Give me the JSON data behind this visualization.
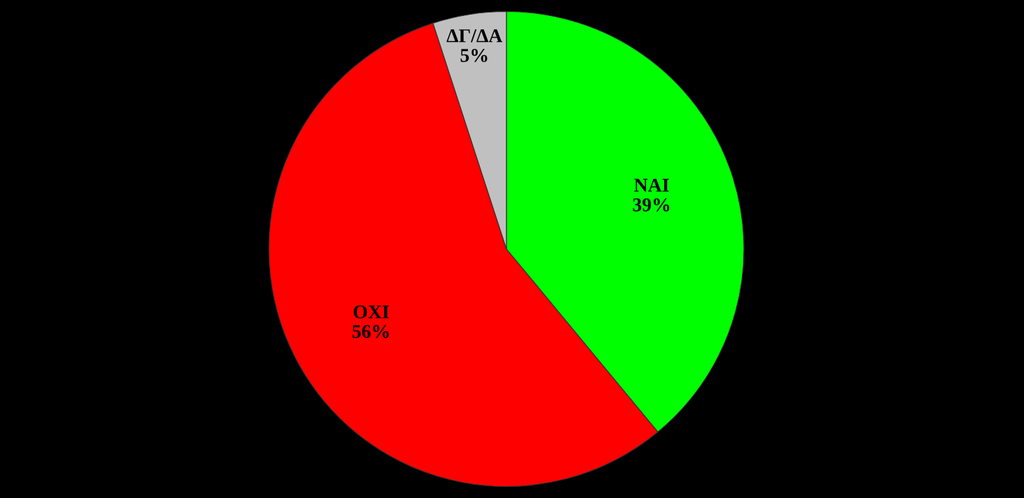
{
  "chart_data": {
    "type": "pie",
    "categories": [
      "ΝΑΙ",
      "ΟΧΙ",
      "ΔΓ/ΔΑ"
    ],
    "values": [
      39,
      56,
      5
    ],
    "colors": [
      "#00ff00",
      "#ff0000",
      "#c0c0c0"
    ],
    "value_labels": [
      "39%",
      "56%",
      "5%"
    ]
  }
}
